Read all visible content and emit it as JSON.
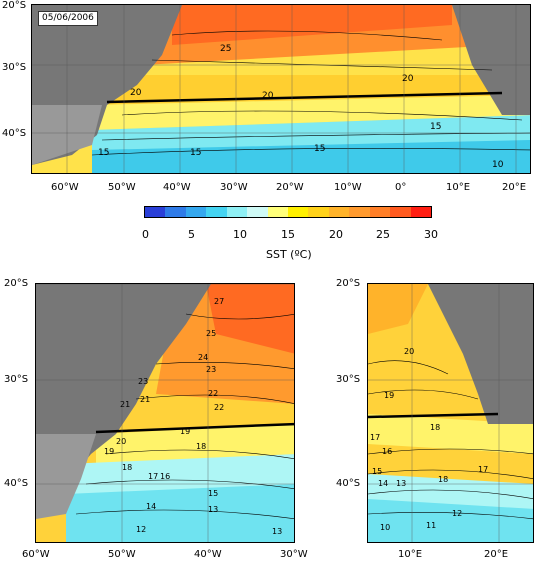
{
  "date": "05/06/2006",
  "main": {
    "lat_labels": [
      "20°S",
      "30°S",
      "40°S"
    ],
    "lon_labels": [
      "60°W",
      "50°W",
      "40°W",
      "30°W",
      "20°W",
      "10°W",
      "0°",
      "10°E",
      "20°E"
    ],
    "contour_labels": [
      "25",
      "20",
      "20",
      "20",
      "15",
      "15",
      "15",
      "15",
      "10"
    ]
  },
  "colorbar": {
    "ticks": [
      "0",
      "5",
      "10",
      "15",
      "20",
      "25",
      "30"
    ],
    "title": "SST (ºC)",
    "colors": [
      "#2a3fd8",
      "#2f7be8",
      "#35a8ef",
      "#45d4f2",
      "#8ff0f5",
      "#cffaf6",
      "#ffff7a",
      "#fff000",
      "#ffd21a",
      "#ffb32a",
      "#ff9a2e",
      "#ff7f28",
      "#ff5a1f",
      "#ff1e12"
    ]
  },
  "sub_left": {
    "lat_labels": [
      "20°S",
      "30°S",
      "40°S"
    ],
    "lon_labels": [
      "60°W",
      "50°W",
      "40°W",
      "30°W"
    ],
    "contour_labels": [
      "27",
      "25",
      "24",
      "23",
      "23",
      "22",
      "21",
      "22",
      "21",
      "20",
      "19",
      "18",
      "19",
      "18",
      "17",
      "16",
      "15",
      "14",
      "13",
      "12",
      "13"
    ]
  },
  "sub_right": {
    "lat_labels": [
      "20°S",
      "30°S",
      "40°S"
    ],
    "lon_labels": [
      "10°E",
      "20°E"
    ],
    "contour_labels": [
      "20",
      "19",
      "18",
      "17",
      "16",
      "15",
      "14",
      "13",
      "12",
      "11",
      "10",
      "18",
      "17"
    ]
  }
}
